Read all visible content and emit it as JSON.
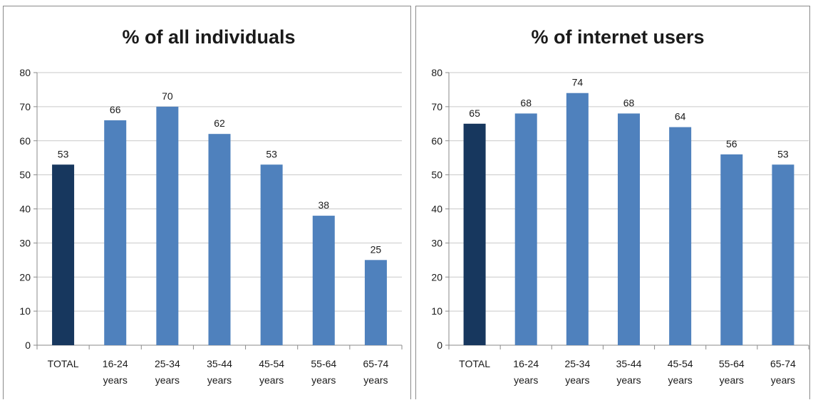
{
  "chart_data": [
    {
      "type": "bar",
      "title": "% of all individuals",
      "categories": [
        [
          "TOTAL"
        ],
        [
          "16-24",
          "years"
        ],
        [
          "25-34",
          "years"
        ],
        [
          "35-44",
          "years"
        ],
        [
          "45-54",
          "years"
        ],
        [
          "55-64",
          "years"
        ],
        [
          "65-74",
          "years"
        ]
      ],
      "values": [
        53,
        66,
        70,
        62,
        53,
        38,
        25
      ],
      "ylim": [
        0,
        80
      ],
      "yticks": [
        0,
        10,
        20,
        30,
        40,
        50,
        60,
        70,
        80
      ],
      "grid": true,
      "colors": {
        "highlight": "#17375e",
        "bar": "#4f81bd"
      }
    },
    {
      "type": "bar",
      "title": "% of internet users",
      "categories": [
        [
          "TOTAL"
        ],
        [
          "16-24",
          "years"
        ],
        [
          "25-34",
          "years"
        ],
        [
          "35-44",
          "years"
        ],
        [
          "45-54",
          "years"
        ],
        [
          "55-64",
          "years"
        ],
        [
          "65-74",
          "years"
        ]
      ],
      "values": [
        65,
        68,
        74,
        68,
        64,
        56,
        53
      ],
      "ylim": [
        0,
        80
      ],
      "yticks": [
        0,
        10,
        20,
        30,
        40,
        50,
        60,
        70,
        80
      ],
      "grid": true,
      "colors": {
        "highlight": "#17375e",
        "bar": "#4f81bd"
      }
    }
  ]
}
